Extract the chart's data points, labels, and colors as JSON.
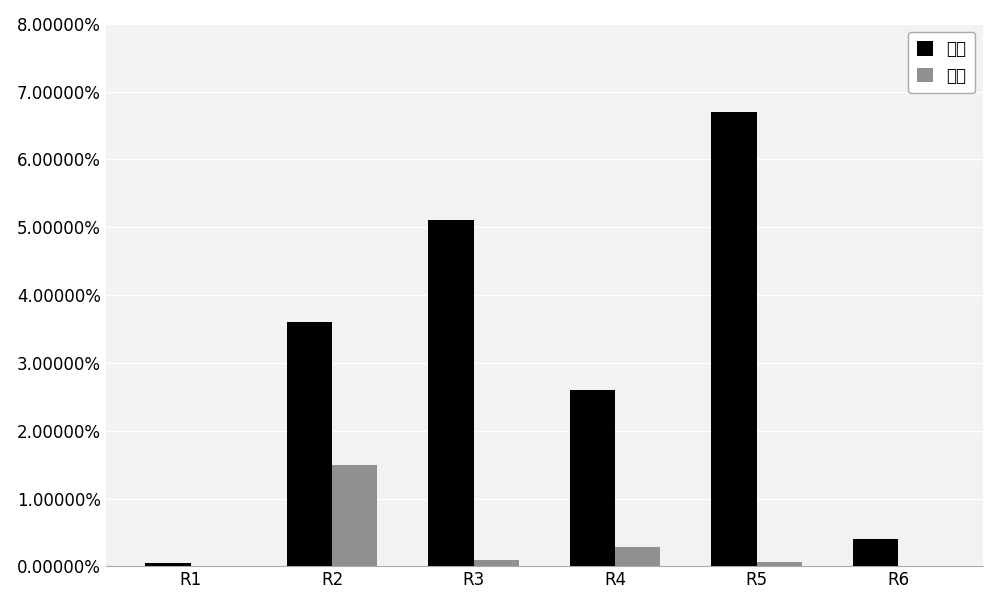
{
  "categories": [
    "R1",
    "R2",
    "R3",
    "R4",
    "R5",
    "R6"
  ],
  "zheng_shai": [
    0.0005,
    0.036,
    0.051,
    0.026,
    0.067,
    0.004
  ],
  "fan_shai": [
    2e-05,
    0.015,
    0.001,
    0.0028,
    0.0006,
    2e-05
  ],
  "zheng_color": "#000000",
  "fan_color": "#909090",
  "legend_zheng": "正筛",
  "legend_fan": "反筛",
  "ylim": [
    0,
    0.08
  ],
  "ytick_vals": [
    0.0,
    0.01,
    0.02,
    0.03,
    0.04,
    0.05,
    0.06,
    0.07,
    0.08
  ],
  "ytick_labels": [
    "0.00000%",
    "1.00000%",
    "2.00000%",
    "3.00000%",
    "4.00000%",
    "5.00000%",
    "6.00000%",
    "7.00000%",
    "8.00000%"
  ],
  "background_color": "#ffffff",
  "plot_bg_color": "#f2f2f2",
  "bar_width": 0.32,
  "grid_color": "#ffffff",
  "legend_edge_color": "#aaaaaa",
  "spine_color": "#aaaaaa"
}
